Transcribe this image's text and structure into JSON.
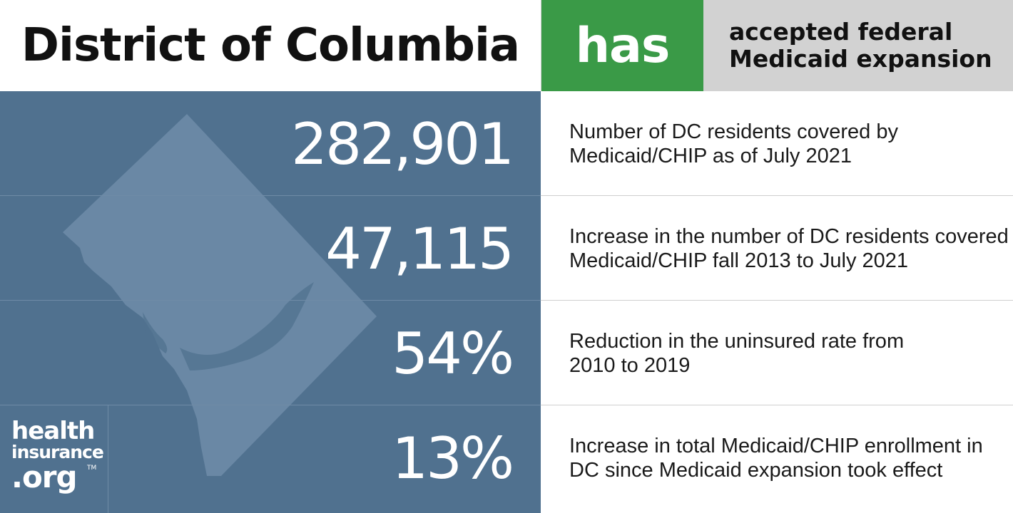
{
  "header": {
    "title": "District of Columbia",
    "status": "has",
    "description_line1": "accepted federal",
    "description_line2": "Medicaid expansion"
  },
  "stats": [
    {
      "value": "282,901",
      "desc_line1": "Number of DC residents covered by",
      "desc_line2": "Medicaid/CHIP as of July 2021"
    },
    {
      "value": "47,115",
      "desc_line1": "Increase in the number of DC residents covered",
      "desc_line2": "Medicaid/CHIP fall 2013 to July 2021"
    },
    {
      "value": "54%",
      "desc_line1": "Reduction in the uninsured rate from",
      "desc_line2": "2010 to 2019"
    },
    {
      "value": "13%",
      "desc_line1": "Increase in total Medicaid/CHIP enrollment in",
      "desc_line2": "DC since Medicaid expansion took effect"
    }
  ],
  "logo": {
    "line1": "health",
    "line2": "insurance",
    "line3": ".org",
    "trademark": "TM"
  },
  "colors": {
    "panel": "#50718f",
    "map": "#6a88a5",
    "status_green": "#3a9a47",
    "desc_gray": "#d2d2d2"
  }
}
